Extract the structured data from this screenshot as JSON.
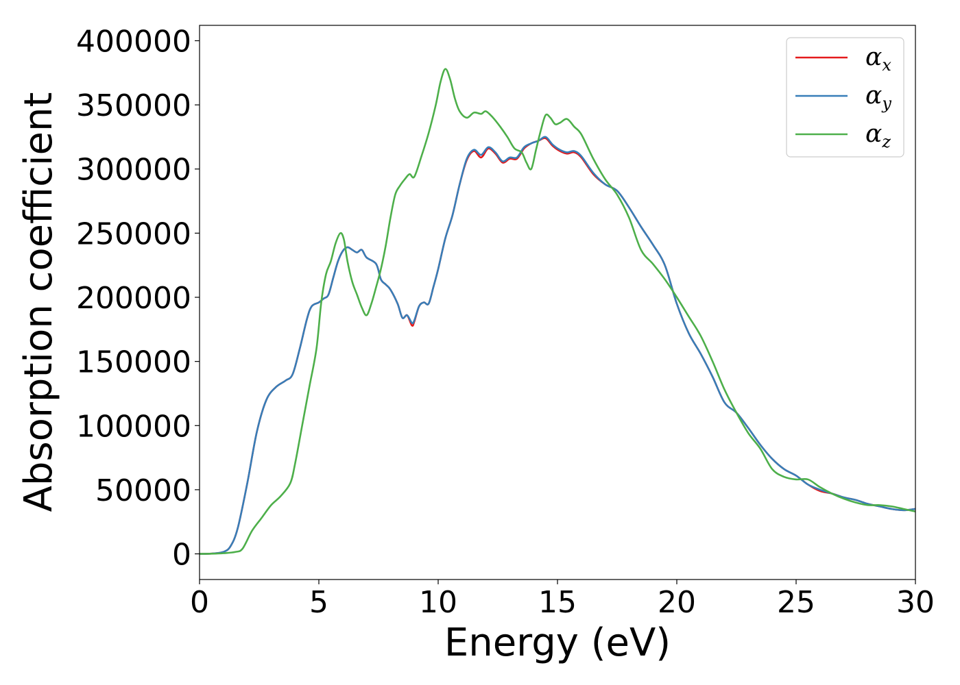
{
  "chart_data": {
    "type": "line",
    "title": "",
    "xlabel": "Energy (eV)",
    "ylabel": "Absorption coefficient",
    "xlim": [
      0,
      30
    ],
    "ylim": [
      -20000,
      412000
    ],
    "xticks": [
      0,
      5,
      10,
      15,
      20,
      25,
      30
    ],
    "yticks": [
      0,
      50000,
      100000,
      150000,
      200000,
      250000,
      300000,
      350000,
      400000
    ],
    "grid": false,
    "legend_position": "top-right",
    "series": [
      {
        "name": "αx",
        "symbol": "α",
        "subscript": "x",
        "color": "#e41a1c",
        "x": [
          0,
          0.5,
          1.0,
          1.3,
          1.6,
          2.0,
          2.4,
          2.8,
          3.2,
          3.6,
          3.9,
          4.2,
          4.5,
          4.7,
          5.0,
          5.2,
          5.4,
          5.6,
          5.8,
          6.0,
          6.2,
          6.4,
          6.6,
          6.8,
          7.0,
          7.4,
          7.6,
          7.8,
          8.0,
          8.3,
          8.5,
          8.7,
          8.9,
          9.0,
          9.2,
          9.4,
          9.6,
          9.8,
          10.0,
          10.3,
          10.6,
          10.9,
          11.2,
          11.5,
          11.8,
          12.1,
          12.4,
          12.7,
          13.0,
          13.3,
          13.6,
          13.9,
          14.2,
          14.5,
          14.8,
          15.1,
          15.4,
          15.7,
          16.0,
          16.5,
          17.0,
          17.5,
          18.0,
          18.5,
          19.0,
          19.5,
          20.0,
          20.5,
          21.0,
          21.5,
          22.0,
          22.5,
          23.0,
          23.5,
          24.0,
          24.5,
          25.0,
          25.5,
          26.0,
          26.5,
          27.0,
          27.5,
          28.0,
          28.5,
          29.0,
          29.5,
          30.0
        ],
        "y": [
          0,
          200,
          1500,
          6000,
          20000,
          55000,
          95000,
          120000,
          130000,
          135000,
          140000,
          160000,
          183000,
          193000,
          196000,
          199000,
          202000,
          215000,
          228000,
          236000,
          239000,
          237000,
          235000,
          237000,
          231000,
          226000,
          214000,
          210000,
          206000,
          195000,
          184000,
          186000,
          178000,
          181000,
          193000,
          196000,
          195000,
          208000,
          222000,
          246000,
          264000,
          288000,
          307000,
          314000,
          309000,
          316000,
          312000,
          305000,
          308000,
          308000,
          316000,
          320000,
          322000,
          324000,
          318000,
          314000,
          312000,
          313000,
          309000,
          296000,
          288000,
          283000,
          270000,
          255000,
          241000,
          225000,
          195000,
          172000,
          156000,
          138000,
          118000,
          110000,
          98000,
          85000,
          74000,
          66000,
          61000,
          54000,
          49000,
          47000,
          44000,
          42000,
          39000,
          37000,
          35000,
          34000,
          35000
        ]
      },
      {
        "name": "αy",
        "symbol": "α",
        "subscript": "y",
        "color": "#377eb8",
        "x": [
          0,
          0.5,
          1.0,
          1.3,
          1.6,
          2.0,
          2.4,
          2.8,
          3.2,
          3.6,
          3.9,
          4.2,
          4.5,
          4.7,
          5.0,
          5.2,
          5.4,
          5.6,
          5.8,
          6.0,
          6.2,
          6.4,
          6.6,
          6.8,
          7.0,
          7.4,
          7.6,
          7.8,
          8.0,
          8.3,
          8.5,
          8.7,
          8.9,
          9.0,
          9.2,
          9.4,
          9.6,
          9.8,
          10.0,
          10.3,
          10.6,
          10.9,
          11.2,
          11.5,
          11.8,
          12.1,
          12.4,
          12.7,
          13.0,
          13.3,
          13.6,
          13.9,
          14.2,
          14.5,
          14.8,
          15.1,
          15.4,
          15.7,
          16.0,
          16.5,
          17.0,
          17.5,
          18.0,
          18.5,
          19.0,
          19.5,
          20.0,
          20.5,
          21.0,
          21.5,
          22.0,
          22.5,
          23.0,
          23.5,
          24.0,
          24.5,
          25.0,
          25.5,
          26.0,
          26.5,
          27.0,
          27.5,
          28.0,
          28.5,
          29.0,
          29.5,
          30.0
        ],
        "y": [
          0,
          200,
          1500,
          6000,
          20000,
          55000,
          95000,
          120000,
          130000,
          135000,
          140000,
          160000,
          183000,
          193000,
          196000,
          199000,
          202000,
          215000,
          228000,
          236000,
          239000,
          237000,
          235000,
          237000,
          231000,
          226000,
          214000,
          210000,
          206000,
          195000,
          184000,
          186000,
          180000,
          182000,
          193000,
          196000,
          195000,
          208000,
          222000,
          246000,
          264000,
          288000,
          308000,
          315000,
          311000,
          317000,
          313000,
          306000,
          309000,
          309000,
          317000,
          320000,
          322000,
          325000,
          319000,
          315000,
          313000,
          314000,
          310000,
          297000,
          288000,
          283000,
          270000,
          255000,
          241000,
          225000,
          195000,
          172000,
          156000,
          138000,
          118000,
          110000,
          98000,
          85000,
          74000,
          66000,
          61000,
          54000,
          50000,
          47000,
          44000,
          42000,
          39000,
          37000,
          35000,
          34000,
          35000
        ]
      },
      {
        "name": "αz",
        "symbol": "α",
        "subscript": "z",
        "color": "#4daf4a",
        "x": [
          0,
          0.5,
          1.0,
          1.5,
          1.8,
          2.2,
          2.6,
          3.0,
          3.4,
          3.8,
          4.0,
          4.3,
          4.6,
          4.9,
          5.1,
          5.3,
          5.5,
          5.7,
          5.9,
          6.05,
          6.2,
          6.4,
          6.6,
          6.8,
          7.0,
          7.2,
          7.4,
          7.6,
          7.8,
          8.0,
          8.2,
          8.4,
          8.6,
          8.8,
          9.0,
          9.3,
          9.6,
          9.9,
          10.1,
          10.3,
          10.5,
          10.7,
          10.9,
          11.2,
          11.5,
          11.8,
          12.0,
          12.3,
          12.6,
          12.9,
          13.2,
          13.5,
          13.7,
          13.9,
          14.1,
          14.3,
          14.5,
          14.7,
          14.9,
          15.1,
          15.4,
          15.7,
          16.0,
          16.5,
          17.0,
          17.5,
          18.0,
          18.5,
          19.0,
          19.5,
          20.0,
          20.5,
          21.0,
          21.5,
          22.0,
          22.5,
          23.0,
          23.5,
          24.0,
          24.5,
          25.0,
          25.5,
          26.0,
          26.5,
          27.0,
          27.5,
          28.0,
          28.5,
          29.0,
          29.5,
          30.0
        ],
        "y": [
          0,
          100,
          500,
          1500,
          4000,
          18000,
          28000,
          38000,
          45000,
          55000,
          70000,
          100000,
          130000,
          160000,
          196000,
          218000,
          228000,
          242000,
          250000,
          245000,
          228000,
          212000,
          202000,
          192000,
          186000,
          195000,
          208000,
          222000,
          240000,
          262000,
          280000,
          287000,
          292000,
          296000,
          294000,
          310000,
          328000,
          350000,
          368000,
          378000,
          370000,
          355000,
          345000,
          340000,
          344000,
          343000,
          345000,
          340000,
          333000,
          325000,
          316000,
          313000,
          305000,
          300000,
          315000,
          330000,
          342000,
          340000,
          335000,
          336000,
          339000,
          333000,
          327000,
          308000,
          292000,
          280000,
          262000,
          237000,
          226000,
          214000,
          200000,
          185000,
          170000,
          150000,
          128000,
          110000,
          94000,
          82000,
          66000,
          60000,
          58000,
          58000,
          52000,
          47000,
          43000,
          40000,
          38000,
          38000,
          37000,
          35000,
          33000
        ]
      }
    ]
  }
}
